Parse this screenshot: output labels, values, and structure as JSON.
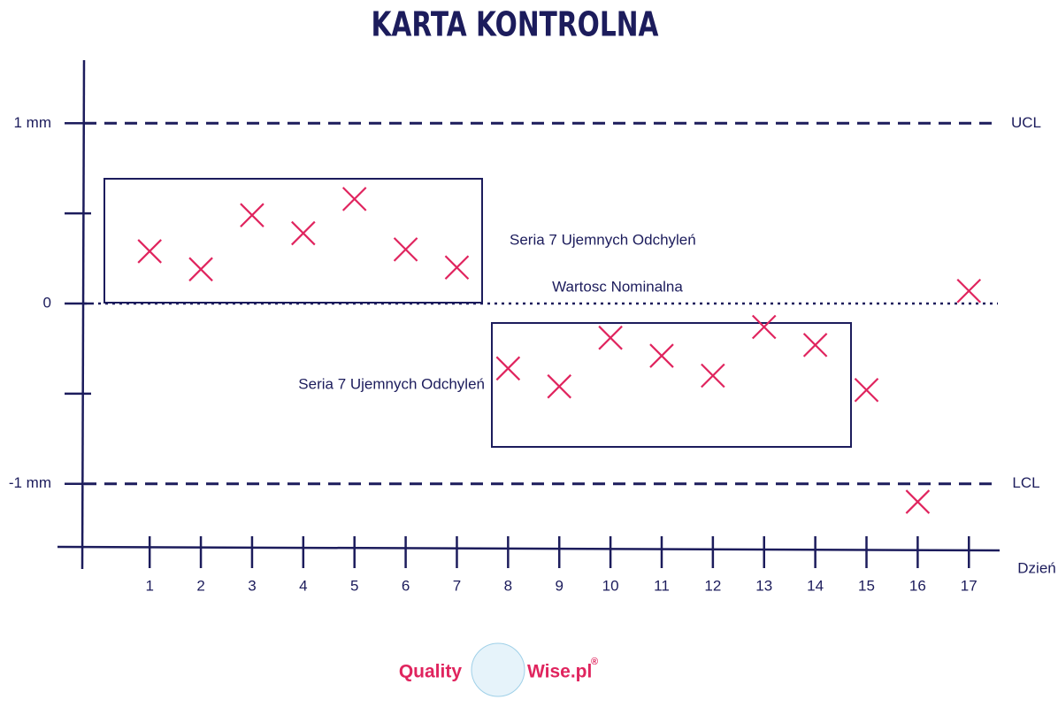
{
  "chart_data": {
    "type": "scatter",
    "title": "KARTA KONTROLNA",
    "x_label": "Dzień",
    "x": [
      1,
      2,
      3,
      4,
      5,
      6,
      7,
      8,
      9,
      10,
      11,
      12,
      13,
      14,
      15,
      16,
      17
    ],
    "values": [
      0.29,
      0.19,
      0.49,
      0.39,
      0.58,
      0.3,
      0.2,
      -0.36,
      -0.46,
      -0.19,
      -0.29,
      -0.4,
      -0.13,
      -0.23,
      -0.48,
      -1.1,
      0.07
    ],
    "color": "#e0245e",
    "xlim": [
      -0.8,
      17.6
    ],
    "xticks": [
      1,
      2,
      3,
      4,
      5,
      6,
      7,
      8,
      9,
      10,
      11,
      12,
      13,
      14,
      15,
      16,
      17
    ],
    "ylim": [
      -1.35,
      1.35
    ],
    "yticks": [
      {
        "value": 1,
        "label": "1 mm"
      },
      {
        "value": 0.5,
        "label": null
      },
      0,
      {
        "value": -0.5,
        "label": null
      },
      {
        "value": -1,
        "label": "-1 mm"
      }
    ],
    "control_lines": [
      {
        "value": 1,
        "label": "UCL",
        "style": "dashed"
      },
      {
        "value": 0,
        "label": "Wartosc Nominalna",
        "style": "dotted"
      },
      {
        "value": -1,
        "label": "LCL",
        "style": "dashed"
      }
    ],
    "annotations": [
      "Seria 7 Ujemnych Odchyleń",
      "Seria 7 Ujemnych Odchyleń"
    ]
  },
  "logo": {
    "left": "Quality",
    "right": "Wise.pl",
    "mark": "®"
  }
}
